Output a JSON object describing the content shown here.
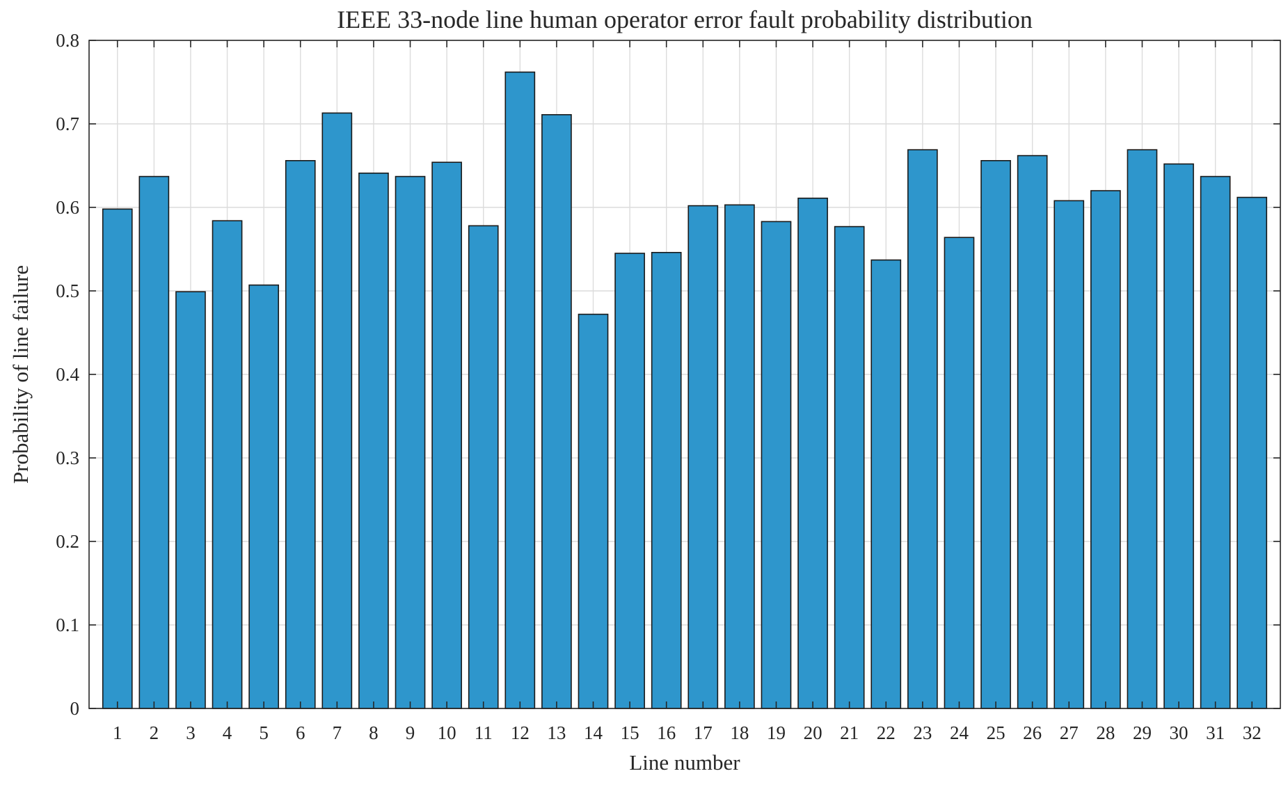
{
  "chart_data": {
    "type": "bar",
    "title": "IEEE 33-node line human operator error fault probability distribution",
    "xlabel": "Line number",
    "ylabel": "Probability of line failure",
    "ylim": [
      0,
      0.8
    ],
    "yticks": [
      "0",
      "0.1",
      "0.2",
      "0.3",
      "0.4",
      "0.5",
      "0.6",
      "0.7",
      "0.8"
    ],
    "ytick_values": [
      0,
      0.1,
      0.2,
      0.3,
      0.4,
      0.5,
      0.6,
      0.7,
      0.8
    ],
    "grid": true,
    "bar_color": "#2e96cc",
    "categories": [
      "1",
      "2",
      "3",
      "4",
      "5",
      "6",
      "7",
      "8",
      "9",
      "10",
      "11",
      "12",
      "13",
      "14",
      "15",
      "16",
      "17",
      "18",
      "19",
      "20",
      "21",
      "22",
      "23",
      "24",
      "25",
      "26",
      "27",
      "28",
      "29",
      "30",
      "31",
      "32"
    ],
    "values": [
      0.598,
      0.637,
      0.499,
      0.584,
      0.507,
      0.656,
      0.713,
      0.641,
      0.637,
      0.654,
      0.578,
      0.762,
      0.711,
      0.472,
      0.545,
      0.546,
      0.602,
      0.603,
      0.583,
      0.611,
      0.577,
      0.537,
      0.669,
      0.564,
      0.656,
      0.662,
      0.608,
      0.62,
      0.669,
      0.652,
      0.637,
      0.612
    ]
  }
}
